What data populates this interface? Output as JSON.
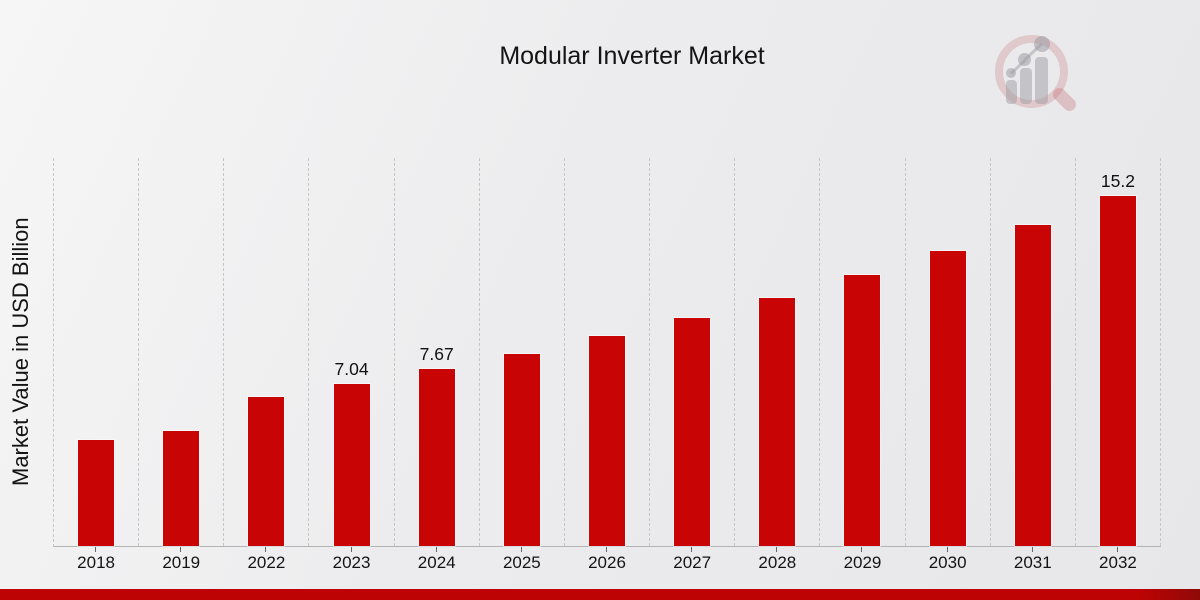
{
  "chart": {
    "title": "Modular Inverter Market",
    "ylabel": "Market Value in USD Billion"
  },
  "chart_data": {
    "type": "bar",
    "title": "Modular Inverter Market",
    "xlabel": "",
    "ylabel": "Market Value in USD Billion",
    "categories": [
      "2018",
      "2019",
      "2022",
      "2023",
      "2024",
      "2025",
      "2026",
      "2027",
      "2028",
      "2029",
      "2030",
      "2031",
      "2032"
    ],
    "values": [
      4.6,
      5.0,
      6.46,
      7.04,
      7.67,
      8.35,
      9.1,
      9.91,
      10.79,
      11.75,
      12.8,
      13.94,
      15.2
    ],
    "bar_labels": [
      "",
      "",
      "",
      "7.04",
      "7.67",
      "",
      "",
      "",
      "",
      "",
      "",
      "",
      "15.2"
    ],
    "ylim": [
      0,
      16.85
    ],
    "grid": "vertical-dashed-gridlines",
    "legend_position": "none",
    "bar_color": "#c90404",
    "footer_band_color": "#bd0303",
    "watermark_icon": "magnifier-bar-chart-logo"
  }
}
